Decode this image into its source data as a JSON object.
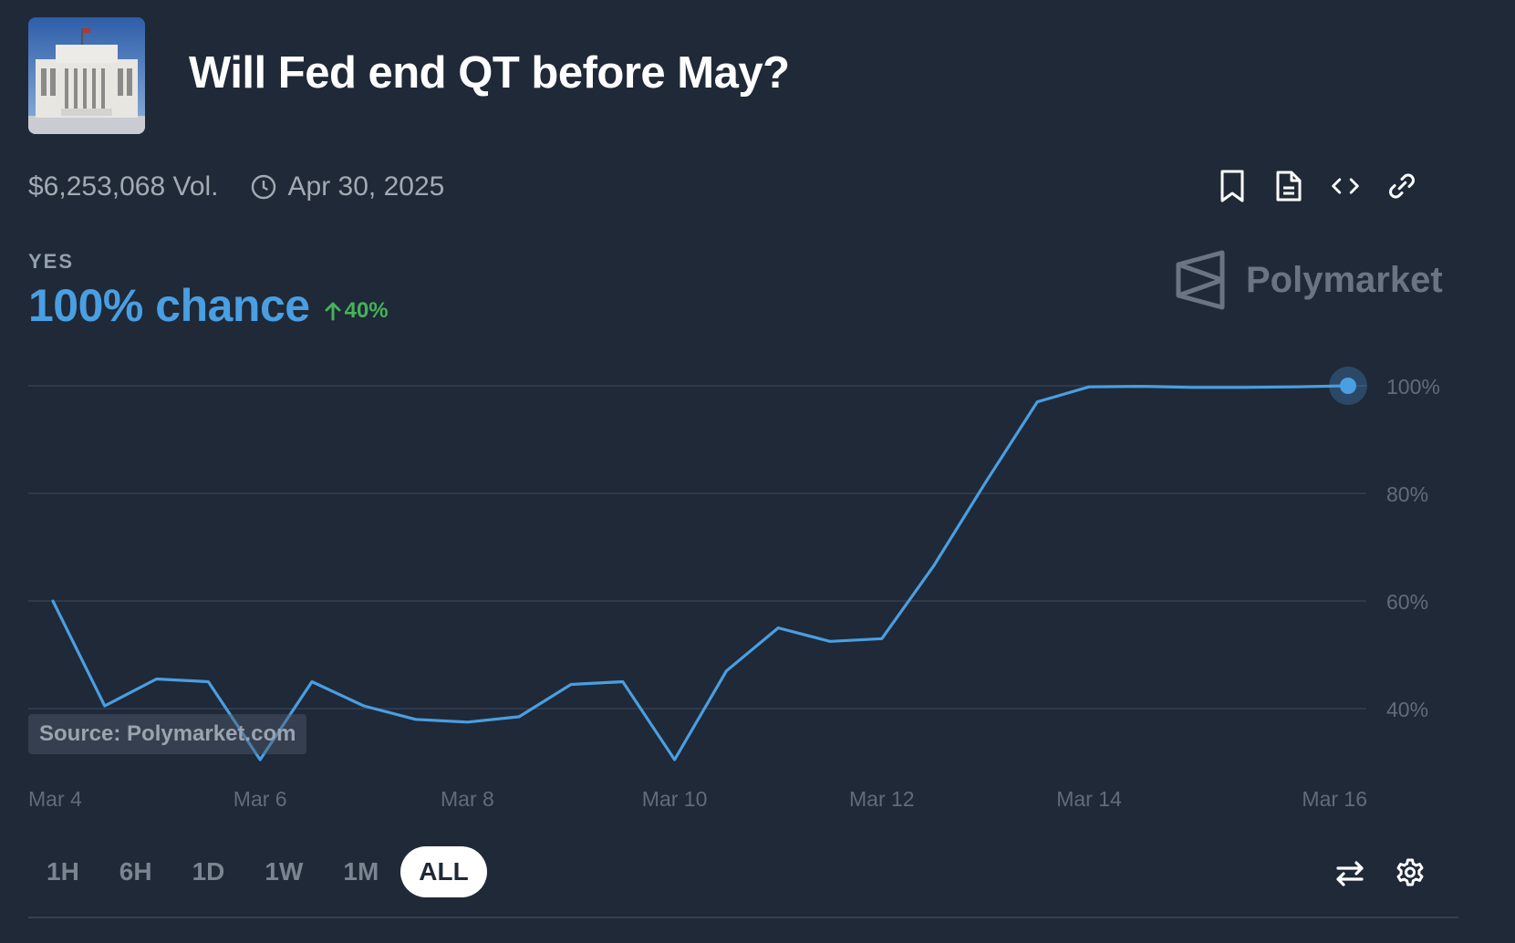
{
  "market": {
    "title": "Will Fed end QT before May?",
    "volume": "$6,253,068 Vol.",
    "end_date": "Apr 30, 2025",
    "image_icon": "federal-reserve-building"
  },
  "actions": {
    "icons": [
      "bookmark-icon",
      "document-icon",
      "code-icon",
      "link-icon"
    ]
  },
  "outcome": {
    "label": "YES",
    "chance": "100% chance",
    "delta": "40%"
  },
  "brand": {
    "name": "Polymarket"
  },
  "source": "Source: Polymarket.com",
  "chart_data": {
    "type": "line",
    "title": "",
    "xlabel": "",
    "ylabel": "",
    "x_ticks": [
      "Mar 4",
      "Mar 6",
      "Mar 8",
      "Mar 10",
      "Mar 12",
      "Mar 14",
      "Mar 16"
    ],
    "y_ticks": [
      "100%",
      "80%",
      "60%",
      "40%"
    ],
    "y_tick_values": [
      100,
      80,
      60,
      40
    ],
    "ylim": [
      20,
      100
    ],
    "xlim": [
      0,
      12.5
    ],
    "series": [
      {
        "name": "Yes",
        "color": "#4a9ee2",
        "points": [
          [
            0.0,
            60
          ],
          [
            0.5,
            40.5
          ],
          [
            1.0,
            45.5
          ],
          [
            1.5,
            45
          ],
          [
            2.0,
            30.5
          ],
          [
            2.5,
            45
          ],
          [
            3.0,
            40.5
          ],
          [
            3.5,
            38
          ],
          [
            4.0,
            37.5
          ],
          [
            4.5,
            38.5
          ],
          [
            5.0,
            44.5
          ],
          [
            5.5,
            45
          ],
          [
            6.0,
            30.5
          ],
          [
            6.5,
            47
          ],
          [
            7.0,
            55
          ],
          [
            7.5,
            52.5
          ],
          [
            8.0,
            53
          ],
          [
            8.5,
            66.5
          ],
          [
            9.0,
            82
          ],
          [
            9.5,
            97
          ],
          [
            10.0,
            99.8
          ],
          [
            10.5,
            99.9
          ],
          [
            11.0,
            99.7
          ],
          [
            11.5,
            99.7
          ],
          [
            12.0,
            99.8
          ],
          [
            12.5,
            100
          ]
        ]
      }
    ]
  },
  "ranges": {
    "items": [
      "1H",
      "6H",
      "1D",
      "1W",
      "1M",
      "ALL"
    ],
    "active": "ALL"
  },
  "tools": {
    "icons": [
      "swap-icon",
      "gear-icon"
    ]
  },
  "colors": {
    "background": "#1f2937",
    "accent": "#4a9ee2",
    "positive": "#46b25a",
    "grid": "#344152"
  }
}
